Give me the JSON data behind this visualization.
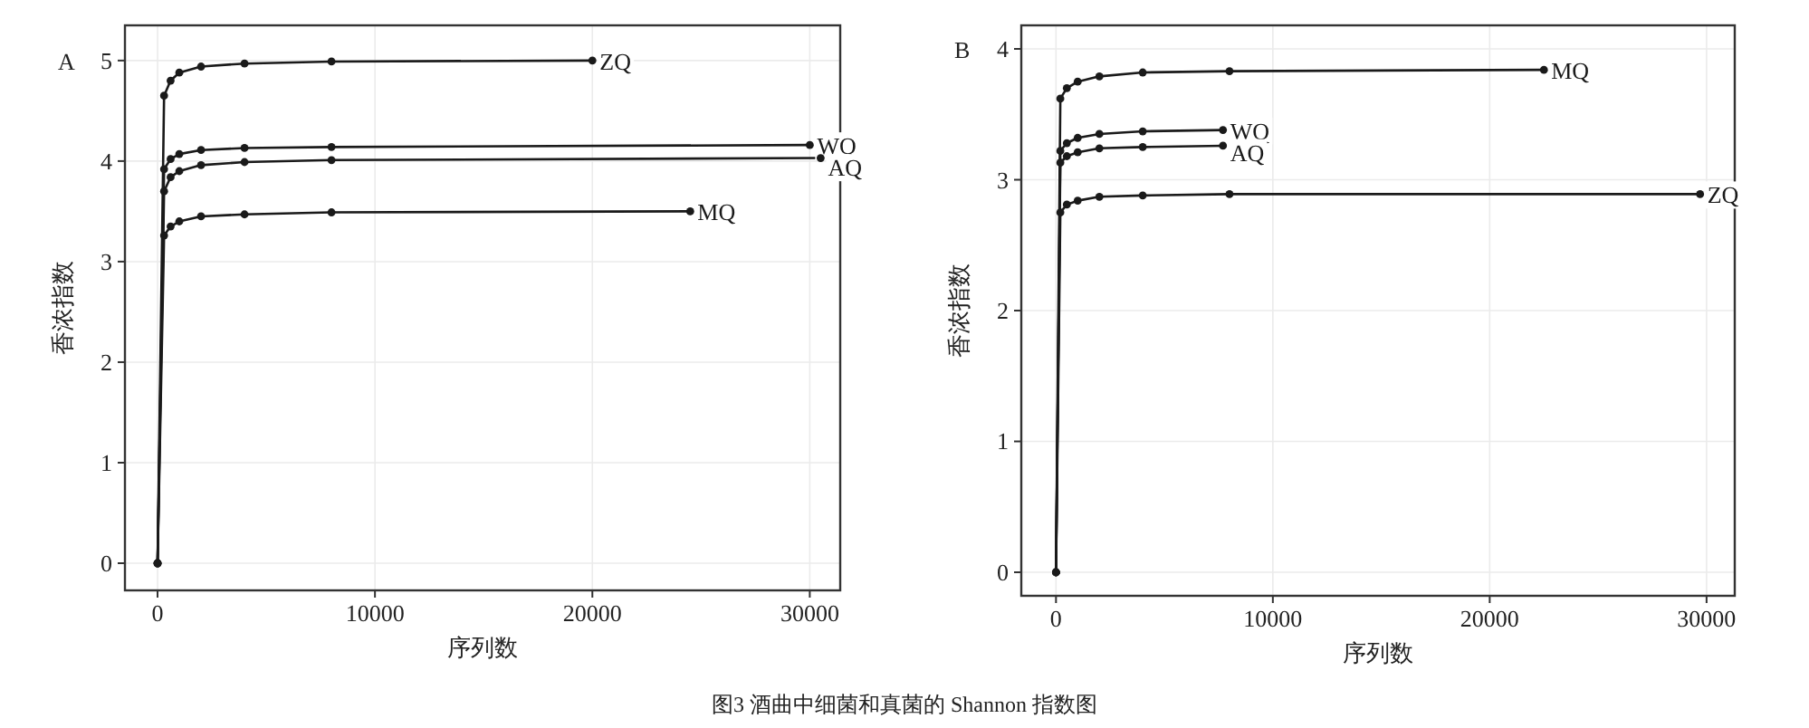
{
  "chart_data": [
    {
      "type": "line",
      "title": "A",
      "xlabel": "序列数",
      "ylabel": "香浓指数",
      "xlim": [
        -1500,
        31400
      ],
      "ylim": [
        -0.27,
        5.35
      ],
      "xticks": [
        0,
        10000,
        20000,
        30000
      ],
      "yticks": [
        0,
        1,
        2,
        3,
        4,
        5
      ],
      "grid": true,
      "marker": "circle",
      "annotations": [
        "图3  酒曲中细菌和真菌的 Shannon 指数图"
      ],
      "series": [
        {
          "name": "ZQ",
          "color": "#1a1a1a",
          "x": [
            0,
            300,
            600,
            1000,
            2000,
            4000,
            8000,
            20000
          ],
          "values": [
            0,
            4.65,
            4.8,
            4.88,
            4.94,
            4.97,
            4.99,
            5.0
          ]
        },
        {
          "name": "WQ",
          "color": "#1a1a1a",
          "x": [
            0,
            300,
            600,
            1000,
            2000,
            4000,
            8000,
            30000
          ],
          "values": [
            0,
            3.92,
            4.02,
            4.07,
            4.11,
            4.13,
            4.14,
            4.16
          ]
        },
        {
          "name": "AQ",
          "color": "#1a1a1a",
          "x": [
            0,
            300,
            600,
            1000,
            2000,
            4000,
            8000,
            30500
          ],
          "values": [
            0,
            3.7,
            3.84,
            3.9,
            3.96,
            3.99,
            4.01,
            4.03
          ]
        },
        {
          "name": "MQ",
          "color": "#1a1a1a",
          "x": [
            0,
            300,
            600,
            1000,
            2000,
            4000,
            8000,
            24500
          ],
          "values": [
            0,
            3.26,
            3.35,
            3.4,
            3.45,
            3.47,
            3.49,
            3.5
          ]
        }
      ]
    },
    {
      "type": "line",
      "title": "B",
      "xlabel": "序列数",
      "ylabel": "香浓指数",
      "xlim": [
        -1600,
        31300
      ],
      "ylim": [
        -0.18,
        4.18
      ],
      "xticks": [
        0,
        10000,
        20000,
        30000
      ],
      "yticks": [
        0,
        1,
        2,
        3,
        4
      ],
      "grid": true,
      "marker": "circle",
      "series": [
        {
          "name": "MQ",
          "color": "#1a1a1a",
          "x": [
            0,
            200,
            500,
            1000,
            2000,
            4000,
            8000,
            22500
          ],
          "values": [
            0,
            3.62,
            3.7,
            3.75,
            3.79,
            3.82,
            3.83,
            3.84
          ]
        },
        {
          "name": "WQ",
          "color": "#1a1a1a",
          "x": [
            0,
            200,
            500,
            1000,
            2000,
            4000,
            7700
          ],
          "values": [
            0,
            3.22,
            3.28,
            3.32,
            3.35,
            3.37,
            3.38
          ]
        },
        {
          "name": "AQ",
          "color": "#1a1a1a",
          "x": [
            0,
            200,
            500,
            1000,
            2000,
            4000,
            7700
          ],
          "values": [
            0,
            3.13,
            3.18,
            3.21,
            3.24,
            3.25,
            3.26
          ]
        },
        {
          "name": "ZQ",
          "color": "#1a1a1a",
          "x": [
            0,
            200,
            500,
            1000,
            2000,
            4000,
            8000,
            29700
          ],
          "values": [
            0,
            2.75,
            2.81,
            2.84,
            2.87,
            2.88,
            2.89,
            2.89
          ]
        }
      ]
    }
  ]
}
